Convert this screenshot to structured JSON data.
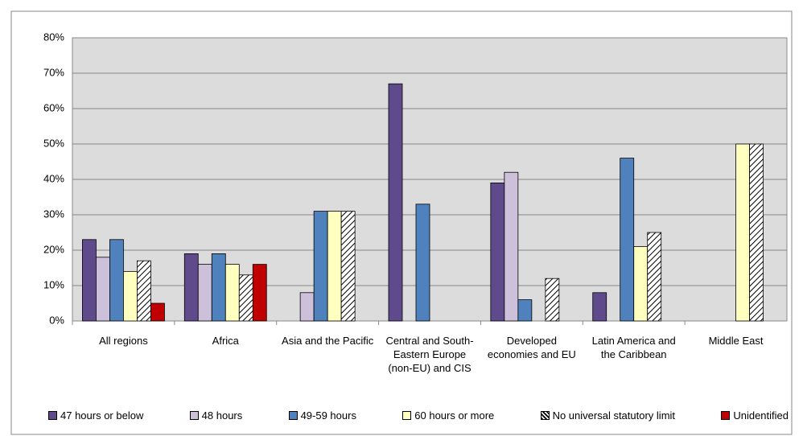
{
  "chart_data": {
    "type": "bar",
    "categories": [
      "All regions",
      "Africa",
      "Asia and the Pacific",
      "Central and South-Eastern Europe (non-EU) and CIS",
      "Developed economies and EU",
      "Latin America and the Caribbean",
      "Middle East"
    ],
    "series": [
      {
        "name": "47 hours or below",
        "color": "#5f4b8b",
        "values": [
          23,
          19,
          0,
          67,
          39,
          8,
          0
        ]
      },
      {
        "name": "48 hours",
        "color": "#ccc0da",
        "values": [
          18,
          16,
          8,
          0,
          42,
          0,
          0
        ]
      },
      {
        "name": "49-59 hours",
        "color": "#4f81bd",
        "values": [
          23,
          19,
          31,
          33,
          6,
          46,
          0
        ]
      },
      {
        "name": "60 hours or more",
        "color": "#ffffc0",
        "values": [
          14,
          16,
          31,
          0,
          0,
          21,
          50
        ]
      },
      {
        "name": "No universal statutory limit",
        "color": "#ffffff",
        "hatch": true,
        "values": [
          17,
          13,
          31,
          0,
          12,
          25,
          50
        ]
      },
      {
        "name": "Unidentified",
        "color": "#c00000",
        "values": [
          5,
          16,
          0,
          0,
          0,
          0,
          0
        ]
      }
    ],
    "ylim": [
      0,
      80
    ],
    "yticks": [
      {
        "value": 0,
        "label": "0%"
      },
      {
        "value": 10,
        "label": "10%"
      },
      {
        "value": 20,
        "label": "20%"
      },
      {
        "value": 30,
        "label": "30%"
      },
      {
        "value": 40,
        "label": "40%"
      },
      {
        "value": 50,
        "label": "50%"
      },
      {
        "value": 60,
        "label": "60%"
      },
      {
        "value": 70,
        "label": "70%"
      },
      {
        "value": 80,
        "label": "80%"
      }
    ],
    "grid": true,
    "legend": "bottom"
  }
}
